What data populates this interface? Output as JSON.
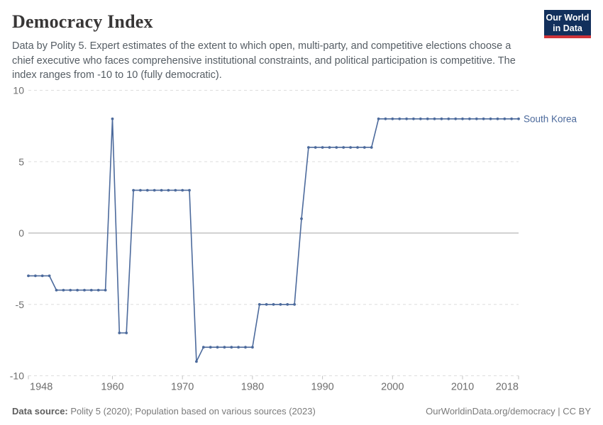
{
  "header": {
    "title": "Democracy Index",
    "subtitle": "Data by Polity 5. Expert estimates of the extent to which open, multi-party, and competitive elections choose a chief executive who faces comprehensive institutional constraints, and political participation is competitive. The index ranges from -10 to 10 (fully democratic).",
    "logo": {
      "line1": "Our World",
      "line2": "in Data"
    }
  },
  "chart_data": {
    "type": "line",
    "title": "Democracy Index",
    "xlabel": "",
    "ylabel": "",
    "xlim": [
      1948,
      2018
    ],
    "ylim": [
      -10,
      10
    ],
    "x_ticks": [
      1948,
      1960,
      1970,
      1980,
      1990,
      2000,
      2010,
      2018
    ],
    "y_ticks": [
      10,
      5,
      0,
      -5,
      -10
    ],
    "grid": "horizontal-dashed, solid-zero-line",
    "legend_position": "end-of-line-label",
    "colors": {
      "line": "#4c6a9c",
      "gridline": "#dedede",
      "zero_line": "#a5a5a5",
      "axis_label": "#6e6e6e",
      "tick_mark": "#c2c2c2"
    },
    "series": [
      {
        "name": "South Korea",
        "color": "#4c6a9c",
        "points": [
          [
            1948,
            -3
          ],
          [
            1949,
            -3
          ],
          [
            1950,
            -3
          ],
          [
            1951,
            -3
          ],
          [
            1952,
            -4
          ],
          [
            1953,
            -4
          ],
          [
            1954,
            -4
          ],
          [
            1955,
            -4
          ],
          [
            1956,
            -4
          ],
          [
            1957,
            -4
          ],
          [
            1958,
            -4
          ],
          [
            1959,
            -4
          ],
          [
            1960,
            8
          ],
          [
            1961,
            -7
          ],
          [
            1962,
            -7
          ],
          [
            1963,
            3
          ],
          [
            1964,
            3
          ],
          [
            1965,
            3
          ],
          [
            1966,
            3
          ],
          [
            1967,
            3
          ],
          [
            1968,
            3
          ],
          [
            1969,
            3
          ],
          [
            1970,
            3
          ],
          [
            1971,
            3
          ],
          [
            1972,
            -9
          ],
          [
            1973,
            -8
          ],
          [
            1974,
            -8
          ],
          [
            1975,
            -8
          ],
          [
            1976,
            -8
          ],
          [
            1977,
            -8
          ],
          [
            1978,
            -8
          ],
          [
            1979,
            -8
          ],
          [
            1980,
            -8
          ],
          [
            1981,
            -5
          ],
          [
            1982,
            -5
          ],
          [
            1983,
            -5
          ],
          [
            1984,
            -5
          ],
          [
            1985,
            -5
          ],
          [
            1986,
            -5
          ],
          [
            1987,
            1
          ],
          [
            1988,
            6
          ],
          [
            1989,
            6
          ],
          [
            1990,
            6
          ],
          [
            1991,
            6
          ],
          [
            1992,
            6
          ],
          [
            1993,
            6
          ],
          [
            1994,
            6
          ],
          [
            1995,
            6
          ],
          [
            1996,
            6
          ],
          [
            1997,
            6
          ],
          [
            1998,
            8
          ],
          [
            1999,
            8
          ],
          [
            2000,
            8
          ],
          [
            2001,
            8
          ],
          [
            2002,
            8
          ],
          [
            2003,
            8
          ],
          [
            2004,
            8
          ],
          [
            2005,
            8
          ],
          [
            2006,
            8
          ],
          [
            2007,
            8
          ],
          [
            2008,
            8
          ],
          [
            2009,
            8
          ],
          [
            2010,
            8
          ],
          [
            2011,
            8
          ],
          [
            2012,
            8
          ],
          [
            2013,
            8
          ],
          [
            2014,
            8
          ],
          [
            2015,
            8
          ],
          [
            2016,
            8
          ],
          [
            2017,
            8
          ],
          [
            2018,
            8
          ]
        ]
      }
    ]
  },
  "footer": {
    "datasource_label": "Data source:",
    "datasource_value": " Polity 5 (2020); Population based on various sources (2023)",
    "credit": "OurWorldinData.org/democracy | CC BY"
  }
}
